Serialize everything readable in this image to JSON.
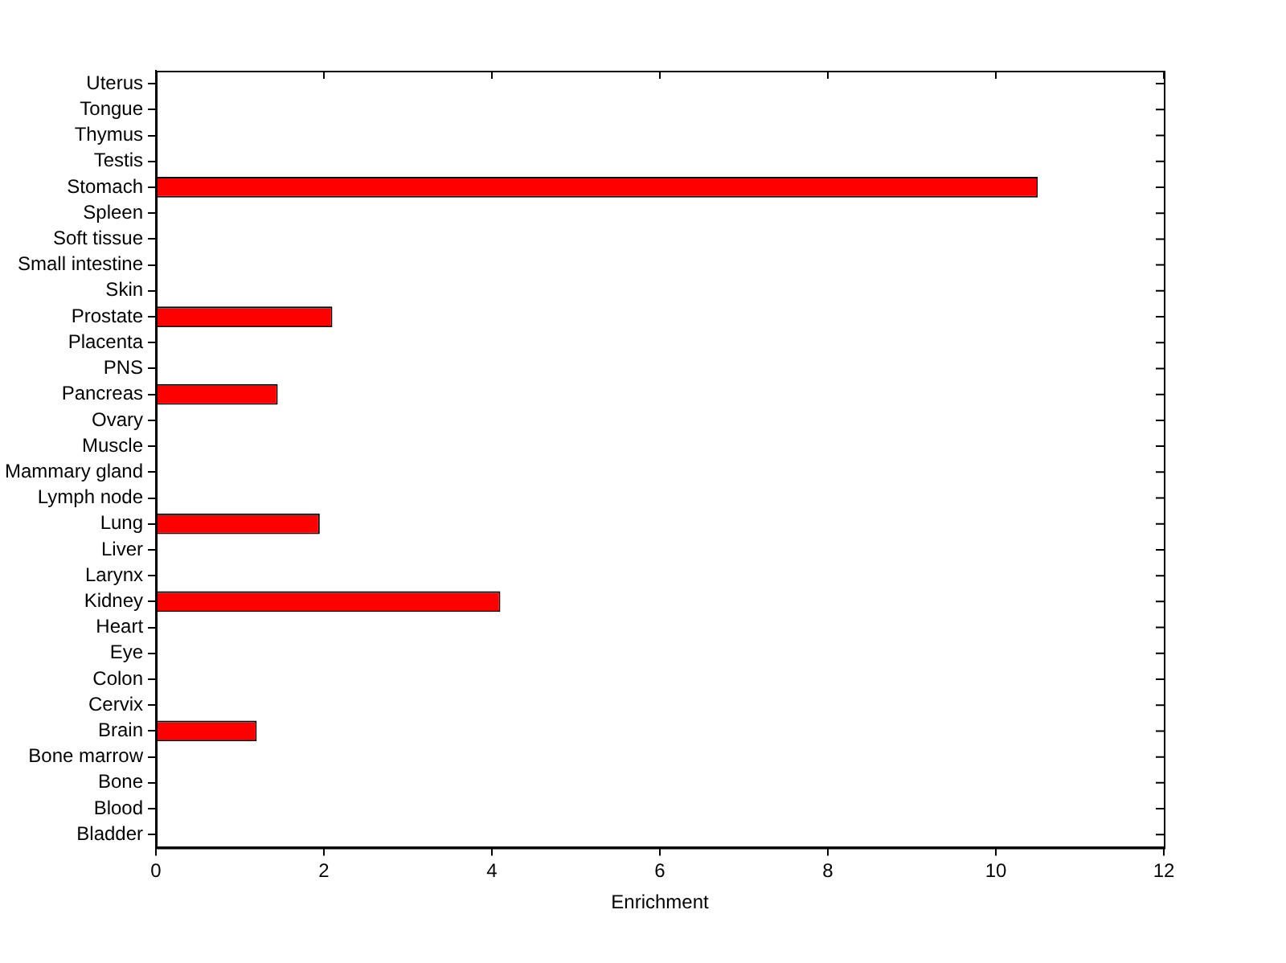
{
  "chart_data": {
    "type": "bar",
    "orientation": "horizontal",
    "xlabel": "Enrichment",
    "categories": [
      "Uterus",
      "Tongue",
      "Thymus",
      "Testis",
      "Stomach",
      "Spleen",
      "Soft tissue",
      "Small intestine",
      "Skin",
      "Prostate",
      "Placenta",
      "PNS",
      "Pancreas",
      "Ovary",
      "Muscle",
      "Mammary gland",
      "Lymph node",
      "Lung",
      "Liver",
      "Larynx",
      "Kidney",
      "Heart",
      "Eye",
      "Colon",
      "Cervix",
      "Brain",
      "Bone marrow",
      "Bone",
      "Blood",
      "Bladder"
    ],
    "values": [
      0,
      0,
      0,
      0,
      10.5,
      0,
      0,
      0,
      0,
      2.1,
      0,
      0,
      1.45,
      0,
      0,
      0,
      0,
      1.95,
      0,
      0,
      4.1,
      0,
      0,
      0,
      0,
      1.2,
      0,
      0,
      0,
      0
    ],
    "color": "#ff0000",
    "xlim": [
      0,
      12
    ],
    "xticks": [
      0,
      2,
      4,
      6,
      8,
      10,
      12
    ],
    "grid": false,
    "legend": false
  }
}
